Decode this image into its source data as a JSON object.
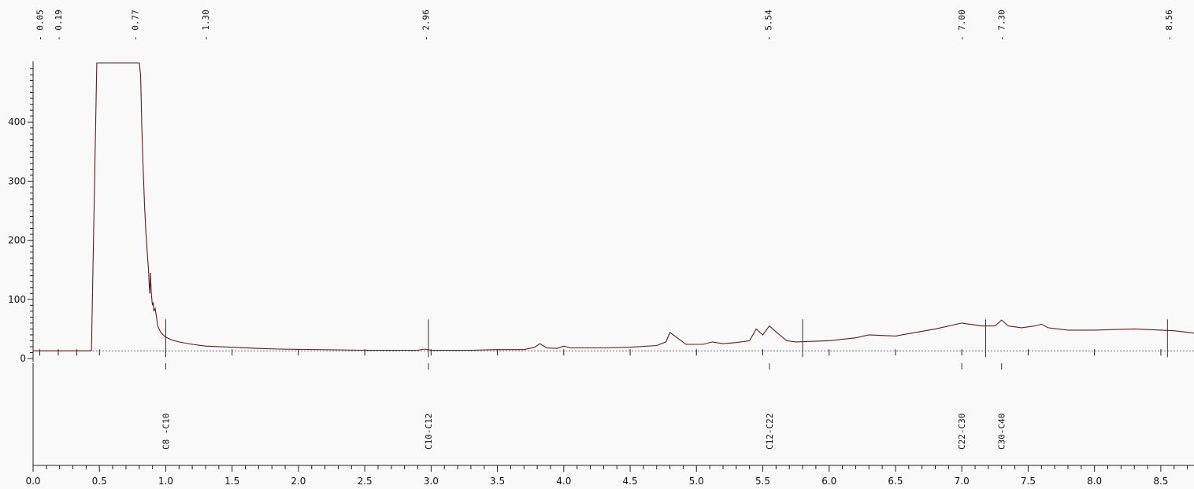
{
  "chart_data": {
    "type": "line",
    "title": "",
    "xlabel": "",
    "ylabel": "",
    "xlim": [
      0.0,
      8.75
    ],
    "ylim": [
      0,
      500
    ],
    "baseline": 13,
    "x_ticks": [
      0.0,
      0.5,
      1.0,
      1.5,
      2.0,
      2.5,
      3.0,
      3.5,
      4.0,
      4.5,
      5.0,
      5.5,
      6.0,
      6.5,
      7.0,
      7.5,
      8.0,
      8.5
    ],
    "x_tick_labels": [
      "0.0",
      "0.5",
      "1.0",
      "1.5",
      "2.0",
      "2.5",
      "3.0",
      "3.5",
      "4.0",
      "4.5",
      "5.0",
      "5.5",
      "6.0",
      "6.5",
      "7.0",
      "7.5",
      "8.0",
      "8.5"
    ],
    "y_ticks": [
      0,
      100,
      200,
      300,
      400
    ],
    "y_tick_labels": [
      "0",
      "100",
      "200",
      "300",
      "400"
    ],
    "retention_times": [
      "0.05",
      "0.19",
      "0.77",
      "1.30",
      "2.96",
      "5.54",
      "7.00",
      "7.30",
      "8.56"
    ],
    "ranges": [
      {
        "label": "C8 -C10",
        "x": 1.0
      },
      {
        "label": "C10-C12",
        "x": 2.98
      },
      {
        "label": "C12-C22",
        "x": 5.55
      },
      {
        "label": "C22-C30",
        "x": 7.0
      },
      {
        "label": "C30-C40",
        "x": 7.3
      }
    ],
    "integration_marks": [
      1.0,
      2.98,
      5.8,
      7.18,
      8.55
    ],
    "series": [
      {
        "x": [
          0.0,
          0.44,
          0.48,
          0.49,
          0.8,
          0.81,
          0.82,
          0.83,
          0.84,
          0.85,
          0.86,
          0.87,
          0.875,
          0.88,
          0.885,
          0.89,
          0.895,
          0.9,
          0.905,
          0.91,
          0.92,
          0.93,
          0.94,
          0.95,
          0.96,
          0.98,
          1.0,
          1.05,
          1.1,
          1.2,
          1.3,
          1.5,
          1.7,
          1.85,
          2.5,
          2.9,
          2.95,
          3.0,
          3.3,
          3.5,
          3.7,
          3.78,
          3.82,
          3.87,
          3.95,
          4.0,
          4.05,
          4.3,
          4.5,
          4.7,
          4.77,
          4.8,
          4.85,
          4.92,
          5.05,
          5.12,
          5.2,
          5.3,
          5.4,
          5.45,
          5.5,
          5.55,
          5.6,
          5.68,
          5.75,
          6.0,
          6.2,
          6.3,
          6.5,
          6.8,
          7.0,
          7.15,
          7.25,
          7.3,
          7.35,
          7.45,
          7.55,
          7.6,
          7.65,
          7.8,
          8.0,
          8.3,
          8.5,
          8.6,
          8.75
        ],
        "y": [
          13,
          13,
          500,
          500,
          500,
          480,
          390,
          320,
          260,
          215,
          180,
          150,
          125,
          110,
          145,
          115,
          100,
          90,
          95,
          80,
          85,
          70,
          55,
          50,
          45,
          40,
          36,
          31,
          28,
          24,
          21,
          19,
          17,
          16,
          14,
          14,
          16,
          14,
          14,
          15,
          15,
          19,
          25,
          18,
          17,
          21,
          18,
          18,
          19,
          22,
          28,
          44,
          36,
          24,
          24,
          28,
          25,
          27,
          30,
          50,
          40,
          55,
          45,
          30,
          28,
          30,
          35,
          40,
          38,
          50,
          60,
          55,
          55,
          65,
          55,
          52,
          55,
          58,
          52,
          48,
          48,
          50,
          48,
          47,
          43
        ]
      }
    ]
  }
}
